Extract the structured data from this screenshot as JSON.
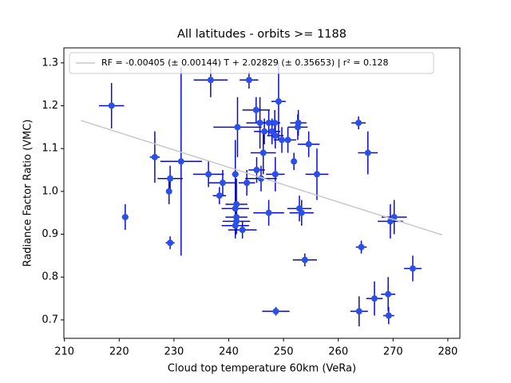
{
  "chart_data": {
    "type": "scatter",
    "title": "All latitudes - orbits >= 1188",
    "x_label": "Cloud top temperature 60km (VeRa)",
    "y_label": "Radiance Factor Ratio (VMC)",
    "xlim": [
      209.9,
      282.2
    ],
    "ylim": [
      0.657,
      1.335
    ],
    "xticks": [
      210,
      220,
      230,
      240,
      250,
      260,
      270,
      280
    ],
    "yticks": [
      0.7,
      0.8,
      0.9,
      {
        "value": 1,
        "label": "1.0"
      },
      1.1,
      1.2,
      1.3
    ],
    "legend_position": "upper left",
    "series": [
      {
        "color": "#0a0acc",
        "marker_color": "#2a50e8",
        "x": [
          218.6,
          221.1,
          226.5,
          229.1,
          229.3,
          229.3,
          231.3,
          236.7,
          236.3,
          238.3,
          238.9,
          241.2,
          241.6,
          241.2,
          241.4,
          241.4,
          241.4,
          241.2,
          242.5,
          243.3,
          243.7,
          245.0,
          245.1,
          245.9,
          245.7,
          246.3,
          246.5,
          247.3,
          247.3,
          247.9,
          248.5,
          248.5,
          248.4,
          248.6,
          249.1,
          249.7,
          250.8,
          251.9,
          252.6,
          252.7,
          252.9,
          253.3,
          253.9,
          254.6,
          256.1,
          263.7,
          264.2,
          263.8,
          265.4,
          266.6,
          269.1,
          269.2,
          269.5,
          270.2,
          273.6
        ],
        "values": [
          1.2,
          0.94,
          1.08,
          1.0,
          1.03,
          0.88,
          1.07,
          1.26,
          1.04,
          0.99,
          1.02,
          1.04,
          1.15,
          0.96,
          0.97,
          0.94,
          0.93,
          0.92,
          0.91,
          1.02,
          1.26,
          1.19,
          1.05,
          1.03,
          1.16,
          1.09,
          1.14,
          0.95,
          1.16,
          1.14,
          1.04,
          1.13,
          1.16,
          0.72,
          1.21,
          1.12,
          1.12,
          1.07,
          1.15,
          1.16,
          0.96,
          0.95,
          0.84,
          1.11,
          1.04,
          1.16,
          0.87,
          0.72,
          1.09,
          0.75,
          0.76,
          0.71,
          0.93,
          0.94,
          0.82
        ],
        "xerr": [
          2.3,
          0.6,
          0.9,
          0.5,
          2.3,
          0.8,
          3.8,
          3.1,
          2.8,
          1.2,
          2.5,
          0.6,
          4.4,
          2.5,
          2.0,
          2.0,
          2.5,
          2.5,
          2.6,
          1.5,
          1.7,
          2.5,
          1.5,
          2.9,
          2.5,
          2.3,
          1.9,
          2.8,
          1.3,
          1.5,
          1.7,
          1.5,
          1.0,
          2.5,
          1.3,
          1.5,
          1.5,
          0.5,
          1.8,
          1.5,
          2.2,
          2.2,
          2.2,
          2.0,
          2.1,
          1.3,
          1.0,
          1.6,
          1.8,
          1.5,
          1.3,
          1.0,
          2.3,
          2.3,
          1.6
        ],
        "yerr": [
          0.053,
          0.03,
          0.06,
          0.03,
          0.03,
          0.015,
          0.22,
          0.04,
          0.03,
          0.02,
          0.03,
          0.08,
          0.07,
          0.03,
          0.06,
          0.03,
          0.03,
          0.03,
          0.02,
          0.03,
          0.02,
          0.03,
          0.03,
          0.03,
          0.06,
          0.05,
          0.03,
          0.03,
          0.03,
          0.03,
          0.04,
          0.03,
          0.03,
          0.01,
          0.09,
          0.03,
          0.03,
          0.02,
          0.03,
          0.03,
          0.03,
          0.03,
          0.015,
          0.03,
          0.06,
          0.015,
          0.015,
          0.035,
          0.05,
          0.04,
          0.04,
          0.02,
          0.04,
          0.04,
          0.03
        ]
      },
      {
        "type": "line",
        "name": "RF = -0.00405 (± 0.00144) T + 2.02829 (± 0.35653) | r² = 0.128",
        "color": "#c8c8c8",
        "x": [
          213,
          279
        ],
        "values": [
          1.1656,
          0.8983
        ]
      }
    ]
  }
}
